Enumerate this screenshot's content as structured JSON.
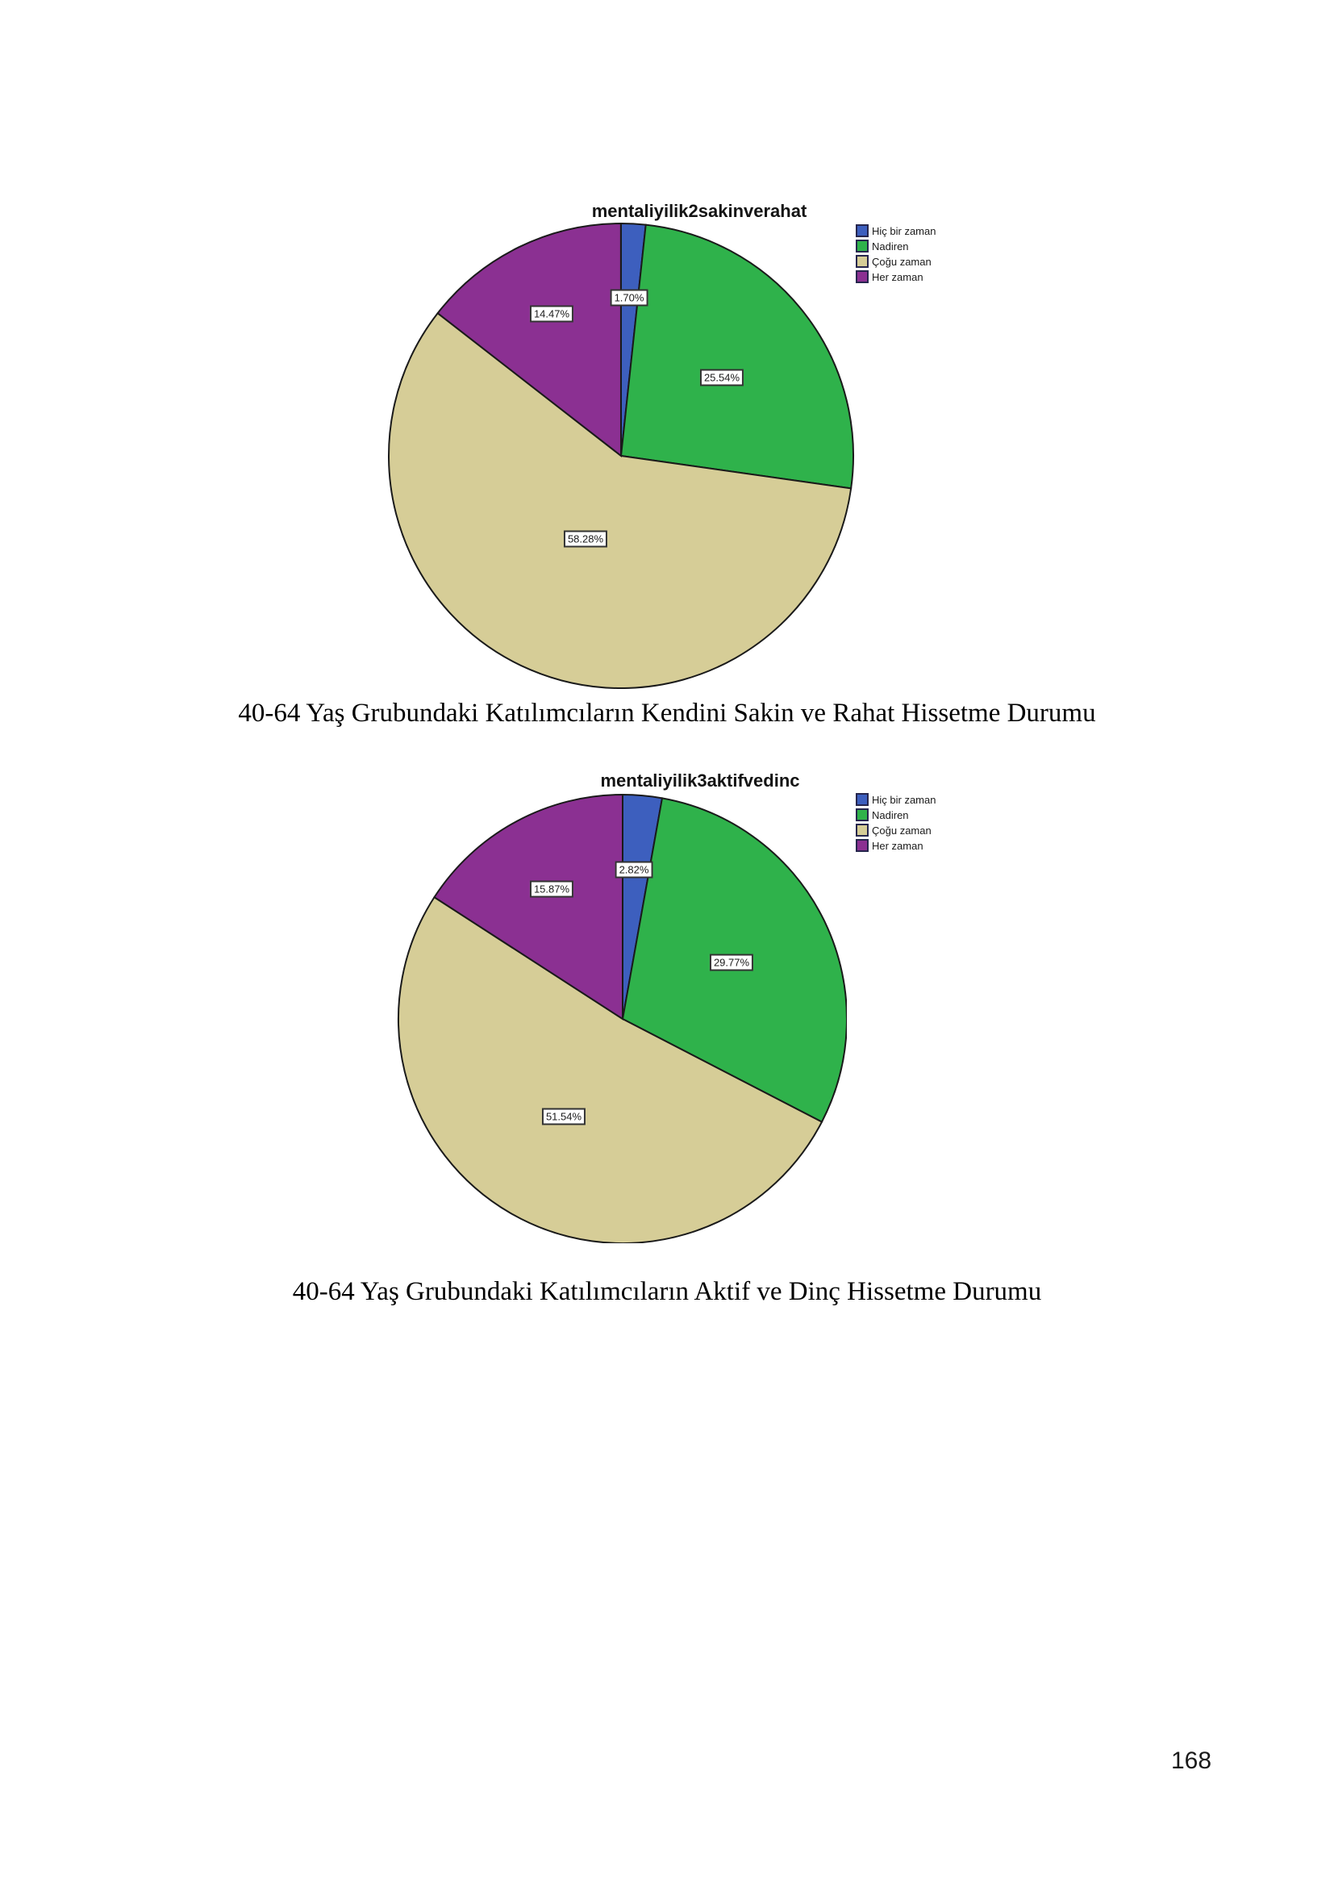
{
  "page": {
    "number": "168"
  },
  "chart_data": [
    {
      "type": "pie",
      "title": "mentaliyilik2sakinverahat",
      "caption": "40-64 Yaş Grubundaki Katılımcıların Kendini Sakin ve Rahat Hissetme Durumu",
      "legend_position": "top-right",
      "start_angle_deg": 0,
      "direction": "clockwise",
      "outline_color": "#1a1a1a",
      "slices": [
        {
          "label": "Hiç bir zaman",
          "value_pct": 1.7,
          "display": "1.70%",
          "color": "#3d5fbe",
          "label_r": 0.68
        },
        {
          "label": "Nadiren",
          "value_pct": 25.54,
          "display": "25.54%",
          "color": "#2fb24b",
          "label_r": 0.55
        },
        {
          "label": "Çoğu zaman",
          "value_pct": 58.28,
          "display": "58.28%",
          "color": "#d6cd97",
          "label_r": 0.39
        },
        {
          "label": "Her zaman",
          "value_pct": 14.47,
          "display": "14.47%",
          "color": "#8b3092",
          "label_r": 0.68
        }
      ]
    },
    {
      "type": "pie",
      "title": "mentaliyilik3aktifvedinc",
      "caption": "40-64 Yaş Grubundaki Katılımcıların Aktif ve Dinç Hissetme Durumu",
      "legend_position": "top-right",
      "start_angle_deg": 0,
      "direction": "clockwise",
      "outline_color": "#1a1a1a",
      "slices": [
        {
          "label": "Hiç bir zaman",
          "value_pct": 2.82,
          "display": "2.82%",
          "color": "#3d5fbe",
          "label_r": 0.66
        },
        {
          "label": "Nadiren",
          "value_pct": 29.77,
          "display": "29.77%",
          "color": "#2fb24b",
          "label_r": 0.55
        },
        {
          "label": "Çoğu zaman",
          "value_pct": 51.54,
          "display": "51.54%",
          "color": "#d6cd97",
          "label_r": 0.51
        },
        {
          "label": "Her zaman",
          "value_pct": 15.87,
          "display": "15.87%",
          "color": "#8b3092",
          "label_r": 0.65
        }
      ]
    }
  ]
}
